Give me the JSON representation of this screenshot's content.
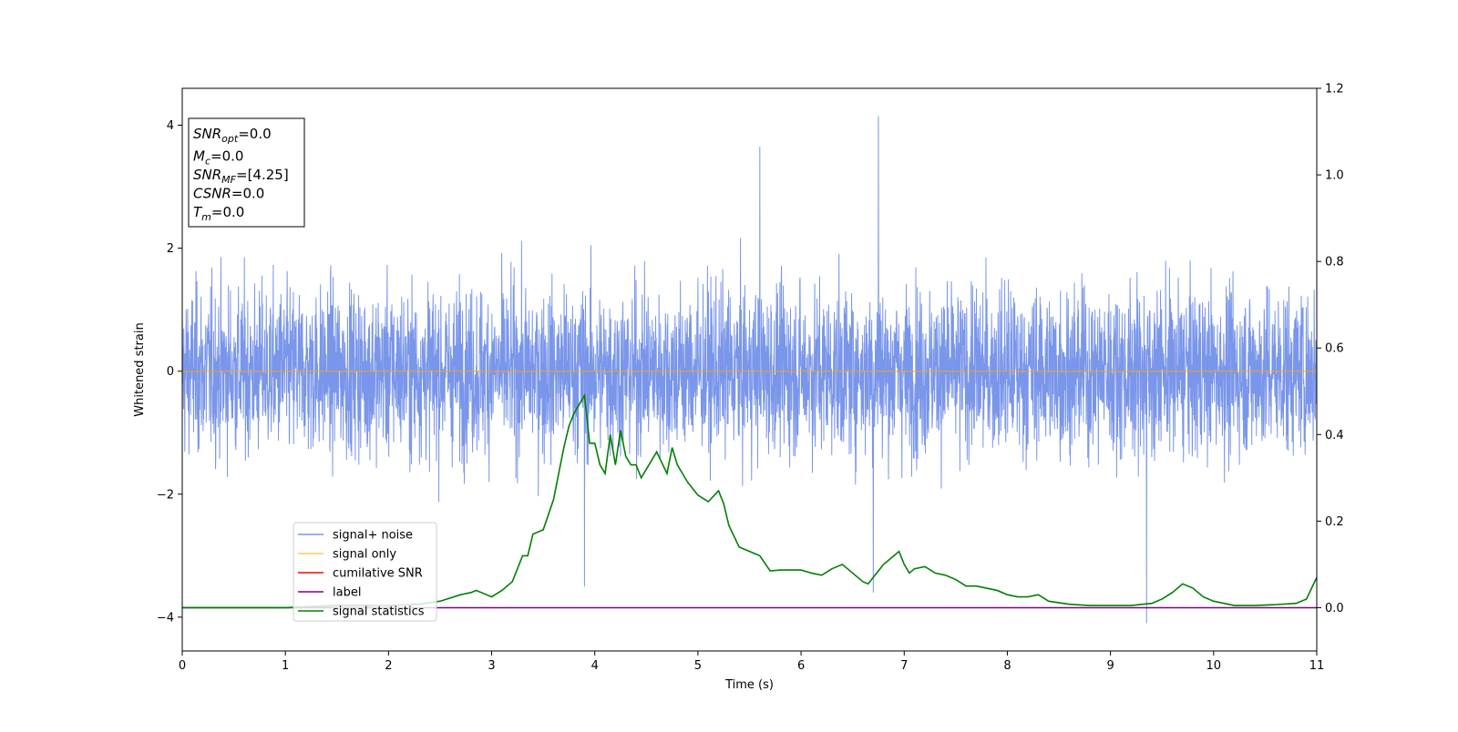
{
  "chart_data": {
    "type": "line",
    "xlabel": "Time (s)",
    "ylabel": "Whitened strain",
    "x_range": [
      0,
      11
    ],
    "ylim": [
      -4.55,
      4.6
    ],
    "ylim_right": [
      -0.1,
      1.2
    ],
    "x_ticks": [
      0,
      1,
      2,
      3,
      4,
      5,
      6,
      7,
      8,
      9,
      10,
      11
    ],
    "y_ticks": [
      4,
      2,
      0,
      -2,
      -4
    ],
    "y_ticks_labels": [
      "4",
      "2",
      "0",
      "−2",
      "−4"
    ],
    "y_ticks_right": [
      1.2,
      1.0,
      0.8,
      0.6,
      0.4,
      0.2,
      0.0
    ],
    "y_ticks_right_labels": [
      "1.2",
      "1.0",
      "0.8",
      "0.6",
      "0.4",
      "0.2",
      "0.0"
    ],
    "grid": false,
    "legend_position": "lower-left",
    "info_box": {
      "lines": [
        {
          "base": "SNR",
          "sub": "opt",
          "value": "=0.0"
        },
        {
          "base": "M",
          "sub": "c",
          "value": "=0.0"
        },
        {
          "base": "SNR",
          "sub": "MF",
          "value": "=[4.25]"
        },
        {
          "base": "CSNR",
          "sub": "",
          "value": "=0.0"
        },
        {
          "base": "T",
          "sub": "m",
          "value": "=0.0"
        }
      ]
    },
    "series": [
      {
        "name": "signal+ noise",
        "color": "#4169e1",
        "style": "dense noise band, approximately within [-2.9, 3.3] with spikes",
        "peaks": [
          [
            6.75,
            4.15
          ],
          [
            9.35,
            -4.1
          ],
          [
            5.6,
            3.65
          ],
          [
            3.9,
            -3.5
          ],
          [
            6.7,
            -3.6
          ]
        ]
      },
      {
        "name": "signal only",
        "color": "#ffa500",
        "x": [
          0,
          11
        ],
        "values": [
          0,
          0
        ]
      },
      {
        "name": "cumilative SNR",
        "color": "#ff0000",
        "x": [],
        "values": []
      },
      {
        "name": "label",
        "color": "#800080",
        "x": [
          0,
          11
        ],
        "values": [
          0,
          0
        ],
        "axis": "right"
      },
      {
        "name": "signal statistics",
        "color": "#008000",
        "axis": "right",
        "x": [
          0,
          0.5,
          1.0,
          1.5,
          2.0,
          2.3,
          2.5,
          2.7,
          2.8,
          2.85,
          2.9,
          3.0,
          3.1,
          3.2,
          3.3,
          3.35,
          3.4,
          3.5,
          3.6,
          3.7,
          3.75,
          3.8,
          3.85,
          3.9,
          3.95,
          4.0,
          4.05,
          4.1,
          4.15,
          4.2,
          4.25,
          4.3,
          4.35,
          4.4,
          4.45,
          4.5,
          4.6,
          4.7,
          4.75,
          4.8,
          4.9,
          5.0,
          5.1,
          5.2,
          5.25,
          5.3,
          5.4,
          5.5,
          5.6,
          5.7,
          5.8,
          5.9,
          6.0,
          6.1,
          6.2,
          6.3,
          6.4,
          6.5,
          6.6,
          6.65,
          6.7,
          6.8,
          6.9,
          6.95,
          7.0,
          7.05,
          7.1,
          7.2,
          7.3,
          7.4,
          7.5,
          7.6,
          7.7,
          7.8,
          7.9,
          8.0,
          8.1,
          8.2,
          8.3,
          8.4,
          8.6,
          8.8,
          9.0,
          9.2,
          9.4,
          9.5,
          9.6,
          9.7,
          9.8,
          9.9,
          10.0,
          10.2,
          10.4,
          10.6,
          10.8,
          10.9,
          11.0
        ],
        "values": [
          0.0,
          0.0,
          0.0,
          0.005,
          0.005,
          0.008,
          0.015,
          0.03,
          0.035,
          0.04,
          0.035,
          0.025,
          0.04,
          0.06,
          0.12,
          0.12,
          0.17,
          0.18,
          0.25,
          0.37,
          0.42,
          0.45,
          0.47,
          0.49,
          0.38,
          0.38,
          0.33,
          0.31,
          0.4,
          0.33,
          0.41,
          0.35,
          0.33,
          0.33,
          0.3,
          0.32,
          0.36,
          0.31,
          0.37,
          0.33,
          0.29,
          0.26,
          0.245,
          0.27,
          0.24,
          0.19,
          0.14,
          0.13,
          0.12,
          0.085,
          0.087,
          0.087,
          0.087,
          0.08,
          0.075,
          0.09,
          0.1,
          0.08,
          0.06,
          0.055,
          0.07,
          0.1,
          0.12,
          0.13,
          0.1,
          0.08,
          0.09,
          0.095,
          0.08,
          0.075,
          0.065,
          0.05,
          0.05,
          0.045,
          0.04,
          0.03,
          0.025,
          0.025,
          0.03,
          0.015,
          0.008,
          0.005,
          0.005,
          0.005,
          0.01,
          0.02,
          0.035,
          0.055,
          0.045,
          0.025,
          0.015,
          0.005,
          0.005,
          0.007,
          0.01,
          0.02,
          0.07
        ]
      }
    ]
  }
}
